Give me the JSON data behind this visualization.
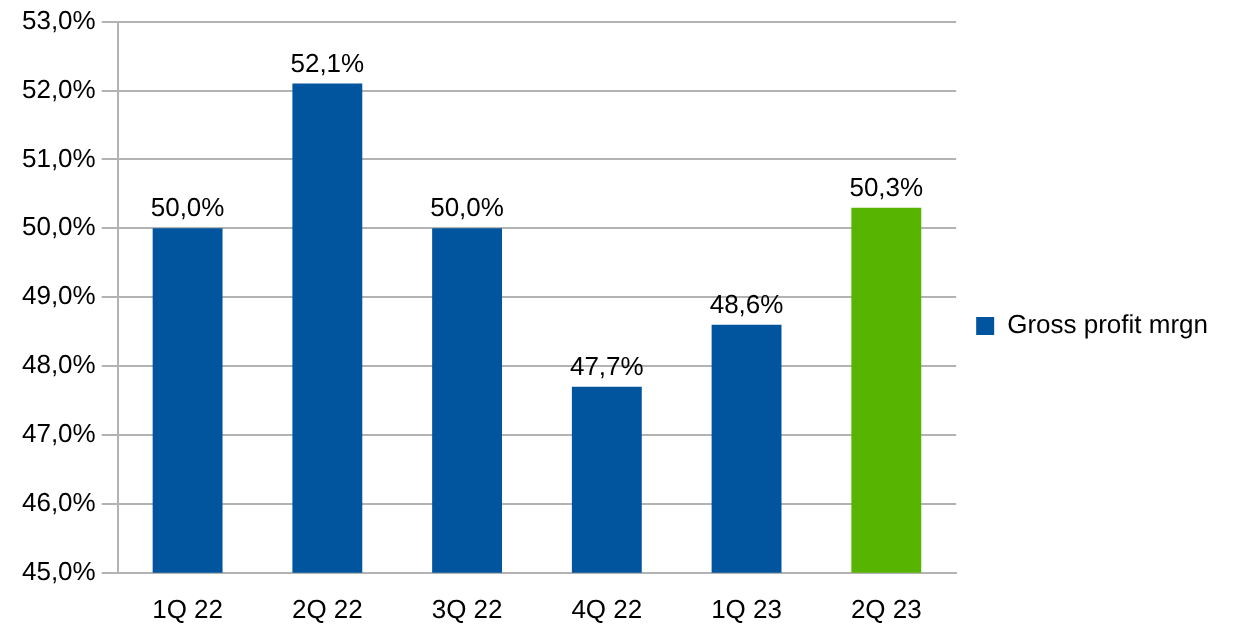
{
  "chart_data": {
    "type": "bar",
    "categories": [
      "1Q 22",
      "2Q 22",
      "3Q 22",
      "4Q 22",
      "1Q 23",
      "2Q 23"
    ],
    "series": [
      {
        "name": "Gross profit mrgn",
        "color": "#00559e",
        "colors": [
          "#00559e",
          "#00559e",
          "#00559e",
          "#00559e",
          "#00559e",
          "#57b400"
        ],
        "values": [
          50.0,
          52.1,
          50.0,
          47.7,
          48.6,
          50.3
        ],
        "value_labels": [
          "50,0%",
          "52,1%",
          "50,0%",
          "47,7%",
          "48,6%",
          "50,3%"
        ]
      }
    ],
    "ylim": [
      45,
      53
    ],
    "yticks": [
      {
        "value": 45,
        "label": "45,0%"
      },
      {
        "value": 46,
        "label": "46,0%"
      },
      {
        "value": 47,
        "label": "47,0%"
      },
      {
        "value": 48,
        "label": "48,0%"
      },
      {
        "value": 49,
        "label": "49,0%"
      },
      {
        "value": 50,
        "label": "50,0%"
      },
      {
        "value": 51,
        "label": "51,0%"
      },
      {
        "value": 52,
        "label": "52,0%"
      },
      {
        "value": 53,
        "label": "53,0%"
      }
    ],
    "grid": "y",
    "legend": "right"
  }
}
